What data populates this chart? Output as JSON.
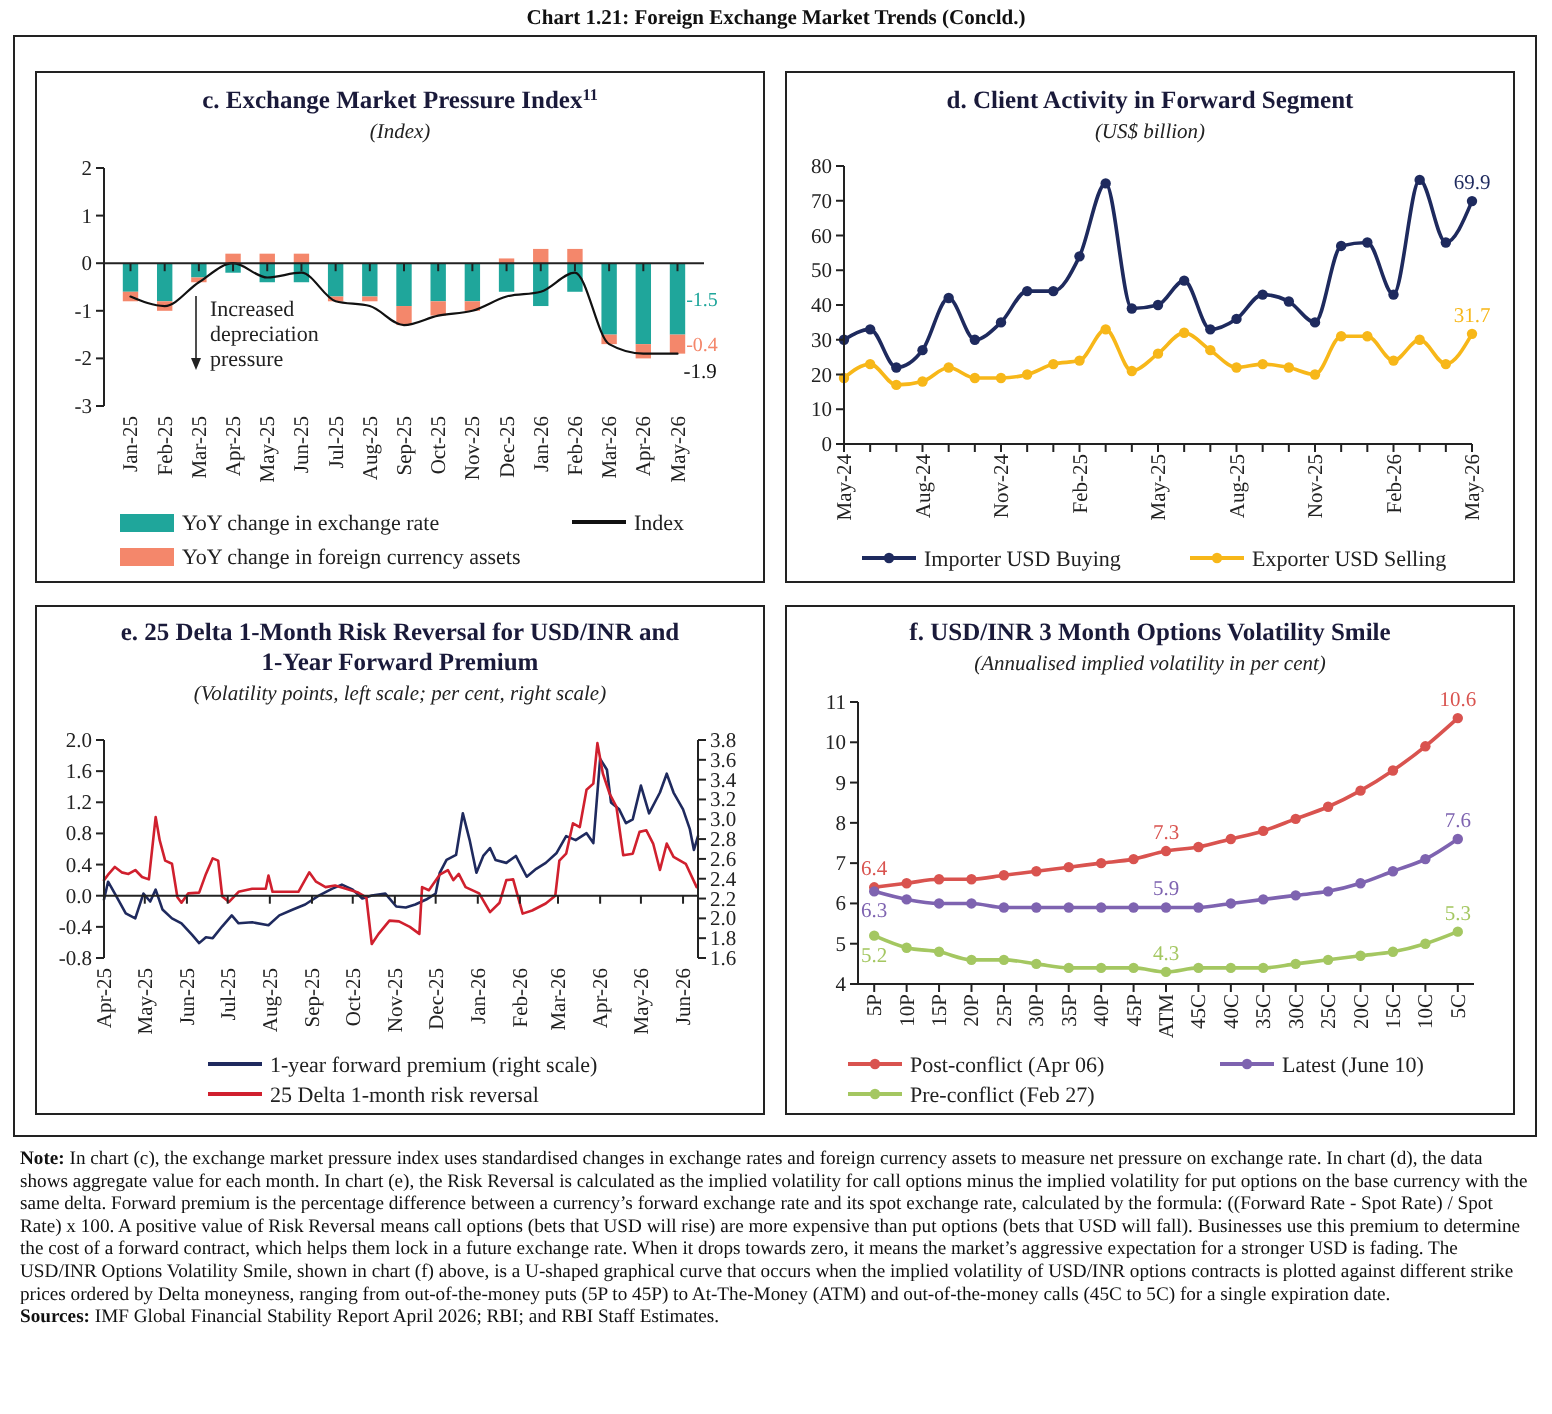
{
  "chart_data": [
    {
      "type": "other",
      "title": "Chart 1.21: Foreign Exchange Market Trends (Concld.)",
      "annotations": [
        "Note: In chart (c), the exchange market pressure index uses standardised changes in exchange rates and foreign currency assets to measure net pressure on exchange rate. In chart (d), the data shows aggregate value for each month. In chart (e), the Risk Reversal is calculated as the implied volatility for call options minus the implied volatility for put options on the base currency with the same delta. Forward premium is the percentage difference between a currency’s forward exchange rate and its spot exchange rate, calculated by the formula: ((Forward Rate - Spot Rate) / Spot Rate) x 100. A positive value of Risk Reversal means call options (bets that USD will rise) are more expensive than put options (bets that USD will fall). Businesses use this premium to determine the cost of a forward contract, which helps them lock in a future exchange rate. When it drops towards zero, it means the market’s aggressive expectation for a stronger USD is fading. The USD/INR Options Volatility Smile, shown in chart (f) above, is a U-shaped graphical curve that occurs when the implied volatility of USD/INR options contracts is plotted against different strike prices ordered by Delta moneyness, ranging from out-of-the-money puts (5P to 45P) to At-The-Money (ATM) and out-of-the-money calls (45C to 5C) for a single expiration date.",
        "Sources: IMF Global Financial Stability Report April 2026; RBI; and RBI Staff Estimates."
      ]
    },
    {
      "type": "bar",
      "title": "c. Exchange Market Pressure Index$^{11}$",
      "subtitle": "(Index)",
      "stacked": true,
      "categories": [
        "Jan-25",
        "Feb-25",
        "Mar-25",
        "Apr-25",
        "May-25",
        "Jun-25",
        "Jul-25",
        "Aug-25",
        "Sep-25",
        "Oct-25",
        "Nov-25",
        "Dec-25",
        "Jan-26",
        "Feb-26",
        "Mar-26",
        "Apr-26",
        "May-26"
      ],
      "series": [
        {
          "name": "YoY change in exchange rate",
          "color": "#1fa69b",
          "values": [
            -0.6,
            -0.8,
            -0.3,
            -0.2,
            -0.4,
            -0.4,
            -0.7,
            -0.7,
            -0.9,
            -0.8,
            -0.8,
            -0.6,
            -0.9,
            -0.6,
            -1.5,
            -1.7,
            -1.5
          ],
          "value_labels": [
            null,
            null,
            null,
            null,
            null,
            null,
            null,
            null,
            null,
            null,
            null,
            null,
            null,
            null,
            null,
            null,
            "-1.5"
          ]
        },
        {
          "name": "YoY change in foreign currency assets",
          "color": "#f4876b",
          "values": [
            -0.2,
            -0.2,
            -0.1,
            0.2,
            0.2,
            0.2,
            -0.1,
            -0.1,
            -0.4,
            -0.3,
            -0.2,
            0.1,
            0.3,
            0.3,
            -0.2,
            -0.3,
            -0.4
          ],
          "value_labels": [
            null,
            null,
            null,
            null,
            null,
            null,
            null,
            null,
            null,
            null,
            null,
            null,
            null,
            null,
            null,
            null,
            "-0.4"
          ]
        },
        {
          "name": "Index",
          "type": "line",
          "color": "#111111",
          "values": [
            -0.7,
            -0.9,
            -0.4,
            0,
            -0.3,
            -0.2,
            -0.8,
            -0.9,
            -1.3,
            -1.1,
            -1.0,
            -0.7,
            -0.6,
            -0.2,
            -1.7,
            -1.9,
            -1.9
          ],
          "value_labels": [
            null,
            null,
            null,
            null,
            null,
            null,
            null,
            null,
            null,
            null,
            null,
            null,
            null,
            null,
            null,
            null,
            "-1.9"
          ]
        }
      ],
      "ylim": [
        -3,
        2
      ],
      "yticks": [
        -3,
        -2,
        -1,
        0,
        1,
        2
      ],
      "legend": "bottom",
      "annotations": [
        "Increased depreciation pressure"
      ]
    },
    {
      "type": "line",
      "title": "d. Client Activity in Forward Segment",
      "subtitle": "(US$ billion)",
      "marker": "circle",
      "categories": [
        "May-24",
        null,
        null,
        "Aug-24",
        null,
        null,
        "Nov-24",
        null,
        null,
        "Feb-25",
        null,
        null,
        "May-25",
        null,
        null,
        "Aug-25",
        null,
        null,
        "Nov-25",
        null,
        null,
        "Feb-26",
        null,
        null,
        "May-26"
      ],
      "series": [
        {
          "name": "Importer USD Buying",
          "color": "#1e2a5e",
          "values": [
            30,
            33,
            22,
            27,
            42,
            30,
            35,
            44,
            44,
            54,
            75,
            39,
            40,
            47,
            33,
            36,
            43,
            41,
            35,
            57,
            58,
            43,
            76,
            58,
            69.9
          ],
          "value_labels": [
            null,
            null,
            null,
            null,
            null,
            null,
            null,
            null,
            null,
            null,
            null,
            null,
            null,
            null,
            null,
            null,
            null,
            null,
            null,
            null,
            null,
            null,
            null,
            null,
            "69.9"
          ]
        },
        {
          "name": "Exporter USD Selling",
          "color": "#f7b719",
          "values": [
            19,
            23,
            17,
            18,
            22,
            19,
            19,
            20,
            23,
            24,
            33,
            21,
            26,
            32,
            27,
            22,
            23,
            22,
            20,
            31,
            31,
            24,
            30,
            23,
            31.7
          ],
          "value_labels": [
            null,
            null,
            null,
            null,
            null,
            null,
            null,
            null,
            null,
            null,
            null,
            null,
            null,
            null,
            null,
            null,
            null,
            null,
            null,
            null,
            null,
            null,
            null,
            null,
            "31.7"
          ]
        }
      ],
      "ylim": [
        0,
        80
      ],
      "yticks": [
        0,
        10,
        20,
        30,
        40,
        50,
        60,
        70,
        80
      ],
      "legend": "bottom"
    },
    {
      "type": "line",
      "title": "e. 25 Delta 1-Month Risk Reversal for USD/INR and 1-Year Forward Premium",
      "subtitle": "(Volatility points, left scale; per cent, right scale)",
      "xlim": [
        "2025-04-01",
        "2026-06-12"
      ],
      "xticks": [
        {
          "value": "2025-04-01",
          "label": "Apr-25"
        },
        {
          "value": "2025-05-01",
          "label": "May-25"
        },
        {
          "value": "2025-06-01",
          "label": "Jun-25"
        },
        {
          "value": "2025-07-01",
          "label": "Jul-25"
        },
        {
          "value": "2025-08-01",
          "label": "Aug-25"
        },
        {
          "value": "2025-09-01",
          "label": "Sep-25"
        },
        {
          "value": "2025-10-01",
          "label": "Oct-25"
        },
        {
          "value": "2025-11-01",
          "label": "Nov-25"
        },
        {
          "value": "2025-12-01",
          "label": "Dec-25"
        },
        {
          "value": "2026-01-01",
          "label": "Jan-26"
        },
        {
          "value": "2026-02-01",
          "label": "Feb-26"
        },
        {
          "value": "2026-03-01",
          "label": "Mar-26"
        },
        {
          "value": "2026-04-01",
          "label": "Apr-26"
        },
        {
          "value": "2026-05-01",
          "label": "May-26"
        },
        {
          "value": "2026-06-01",
          "label": "Jun-26"
        }
      ],
      "series": [
        {
          "name": "1-year forward premium (right scale)",
          "color": "#1f2a5e",
          "axis": "y2",
          "x": [
            "2025-04-01",
            "2025-04-04",
            "2025-04-09",
            "2025-04-17",
            "2025-04-24",
            "2025-04-30",
            "2025-05-05",
            "2025-05-09",
            "2025-05-14",
            "2025-05-21",
            "2025-05-28",
            "2025-06-05",
            "2025-06-10",
            "2025-06-15",
            "2025-06-20",
            "2025-06-27",
            "2025-07-04",
            "2025-07-09",
            "2025-07-19",
            "2025-07-31",
            "2025-08-08",
            "2025-08-18",
            "2025-08-27",
            "2025-09-06",
            "2025-09-16",
            "2025-09-23",
            "2025-10-01",
            "2025-10-08",
            "2025-10-15",
            "2025-10-25",
            "2025-11-02",
            "2025-11-09",
            "2025-11-16",
            "2025-11-24",
            "2025-12-01",
            "2025-12-04",
            "2025-12-09",
            "2025-12-16",
            "2025-12-21",
            "2025-12-26",
            "2025-12-31",
            "2026-01-05",
            "2026-01-10",
            "2026-01-14",
            "2026-01-22",
            "2026-01-29",
            "2026-02-06",
            "2026-02-13",
            "2026-02-20",
            "2026-02-28",
            "2026-03-07",
            "2026-03-14",
            "2026-03-22",
            "2026-03-27",
            "2026-04-01",
            "2026-04-06",
            "2026-04-09",
            "2026-04-15",
            "2026-04-20",
            "2026-04-25",
            "2026-05-01",
            "2026-05-07",
            "2026-05-15",
            "2026-05-20",
            "2026-05-25",
            "2026-06-01",
            "2026-06-06",
            "2026-06-09",
            "2026-06-12"
          ],
          "values": [
            2.19,
            2.37,
            2.25,
            2.05,
            2.0,
            2.25,
            2.17,
            2.29,
            2.09,
            2.0,
            1.95,
            1.83,
            1.75,
            1.81,
            1.8,
            1.92,
            2.03,
            1.95,
            1.96,
            1.93,
            2.03,
            2.09,
            2.14,
            2.23,
            2.3,
            2.34,
            2.29,
            2.2,
            2.23,
            2.25,
            2.12,
            2.11,
            2.14,
            2.19,
            2.25,
            2.46,
            2.59,
            2.64,
            3.06,
            2.79,
            2.46,
            2.63,
            2.71,
            2.59,
            2.56,
            2.63,
            2.42,
            2.5,
            2.56,
            2.66,
            2.83,
            2.79,
            2.86,
            2.76,
            3.61,
            3.5,
            3.17,
            3.1,
            2.96,
            3.0,
            3.34,
            3.06,
            3.27,
            3.46,
            3.27,
            3.1,
            2.9,
            2.69,
            2.83
          ]
        },
        {
          "name": "25 Delta 1-month risk reversal",
          "color": "#d0202e",
          "x": [
            "2025-04-01",
            "2025-04-04",
            "2025-04-09",
            "2025-04-14",
            "2025-04-19",
            "2025-04-24",
            "2025-04-29",
            "2025-05-04",
            "2025-05-09",
            "2025-05-12",
            "2025-05-16",
            "2025-05-21",
            "2025-05-25",
            "2025-05-28",
            "2025-06-02",
            "2025-06-10",
            "2025-06-15",
            "2025-06-20",
            "2025-06-24",
            "2025-06-27",
            "2025-07-02",
            "2025-07-09",
            "2025-07-19",
            "2025-07-29",
            "2025-07-31",
            "2025-08-03",
            "2025-08-13",
            "2025-08-22",
            "2025-08-30",
            "2025-09-04",
            "2025-09-11",
            "2025-09-18",
            "2025-09-26",
            "2025-10-05",
            "2025-10-11",
            "2025-10-15",
            "2025-10-20",
            "2025-10-28",
            "2025-11-04",
            "2025-11-12",
            "2025-11-19",
            "2025-11-21",
            "2025-11-26",
            "2025-12-04",
            "2025-12-10",
            "2025-12-14",
            "2025-12-18",
            "2025-12-23",
            "2026-01-02",
            "2026-01-10",
            "2026-01-17",
            "2026-01-22",
            "2026-01-27",
            "2026-02-03",
            "2026-02-10",
            "2026-02-20",
            "2026-02-27",
            "2026-03-02",
            "2026-03-07",
            "2026-03-12",
            "2026-03-17",
            "2026-03-22",
            "2026-03-27",
            "2026-03-30",
            "2026-04-03",
            "2026-04-08",
            "2026-04-13",
            "2026-04-18",
            "2026-04-25",
            "2026-04-30",
            "2026-05-05",
            "2026-05-10",
            "2026-05-15",
            "2026-05-20",
            "2026-05-25",
            "2026-06-03",
            "2026-06-11"
          ],
          "values": [
            0.2,
            0.27,
            0.37,
            0.3,
            0.28,
            0.33,
            0.24,
            0.21,
            1.01,
            0.71,
            0.45,
            0.41,
            -0.02,
            -0.09,
            0.03,
            0.04,
            0.28,
            0.48,
            0.45,
            -0.01,
            -0.08,
            0.05,
            0.09,
            0.09,
            0.26,
            0.05,
            0.05,
            0.05,
            0.3,
            0.18,
            0.11,
            0.13,
            0.09,
            0.04,
            -0.02,
            -0.62,
            -0.49,
            -0.32,
            -0.33,
            -0.4,
            -0.49,
            0.11,
            0.07,
            0.27,
            0.33,
            0.2,
            0.28,
            0.11,
            0.03,
            -0.21,
            -0.09,
            0.2,
            0.21,
            -0.23,
            -0.19,
            -0.1,
            0,
            0.45,
            0.54,
            0.93,
            0.88,
            1.36,
            1.44,
            1.96,
            1.57,
            1.31,
            1.14,
            0.52,
            0.54,
            0.82,
            0.84,
            0.67,
            0.33,
            0.67,
            0.5,
            0.41,
            0.11
          ]
        }
      ],
      "ylim": [
        -0.8,
        2.0
      ],
      "yticks": [
        {
          "value": -0.8,
          "label": "-0.8"
        },
        {
          "value": -0.4,
          "label": "-0.4"
        },
        {
          "value": 0,
          "label": "0.0"
        },
        {
          "value": 0.4,
          "label": "0.4"
        },
        {
          "value": 0.8,
          "label": "0.8"
        },
        {
          "value": 1.2,
          "label": "1.2"
        },
        {
          "value": 1.6,
          "label": "1.6"
        },
        {
          "value": 2,
          "label": "2.0"
        }
      ],
      "y2lim": [
        1.6,
        3.8
      ],
      "y2ticks": [
        1.6,
        1.8,
        {
          "value": 2,
          "label": "2.0"
        },
        2.2,
        2.4,
        2.6,
        2.8,
        {
          "value": 3,
          "label": "3.0"
        },
        3.2,
        3.4,
        3.6,
        3.8
      ],
      "legend": "bottom"
    },
    {
      "type": "line",
      "title": "f. USD/INR 3 Month Options Volatility Smile",
      "subtitle": "(Annualised implied volatility in per cent)",
      "marker": "circle",
      "categories": [
        "5P",
        "10P",
        "15P",
        "20P",
        "25P",
        "30P",
        "35P",
        "40P",
        "45P",
        "ATM",
        "45C",
        "40C",
        "35C",
        "30C",
        "25C",
        "20C",
        "15C",
        "10C",
        "5C"
      ],
      "series": [
        {
          "name": "Post-conflict (Apr 06)",
          "color": "#d9534f",
          "values": [
            6.4,
            6.5,
            6.6,
            6.6,
            6.7,
            6.8,
            6.9,
            7.0,
            7.1,
            7.3,
            7.4,
            7.6,
            7.8,
            8.1,
            8.4,
            8.8,
            9.3,
            9.9,
            10.6
          ],
          "value_labels": [
            "6.4",
            null,
            null,
            null,
            null,
            null,
            null,
            null,
            null,
            "7.3",
            null,
            null,
            null,
            null,
            null,
            null,
            null,
            null,
            "10.6"
          ]
        },
        {
          "name": "Latest (June 10)",
          "color": "#7e63b0",
          "values": [
            6.3,
            6.1,
            6.0,
            6.0,
            5.9,
            5.9,
            5.9,
            5.9,
            5.9,
            5.9,
            5.9,
            6.0,
            6.1,
            6.2,
            6.3,
            6.5,
            6.8,
            7.1,
            7.6
          ],
          "value_labels": [
            "6.3",
            null,
            null,
            null,
            null,
            null,
            null,
            null,
            null,
            "5.9",
            null,
            null,
            null,
            null,
            null,
            null,
            null,
            null,
            "7.6"
          ]
        },
        {
          "name": "Pre-conflict (Feb 27)",
          "color": "#a4c761",
          "values": [
            5.2,
            4.9,
            4.8,
            4.6,
            4.6,
            4.5,
            4.4,
            4.4,
            4.4,
            4.3,
            4.4,
            4.4,
            4.4,
            4.5,
            4.6,
            4.7,
            4.8,
            5.0,
            5.3
          ],
          "value_labels": [
            "5.2",
            null,
            null,
            null,
            null,
            null,
            null,
            null,
            null,
            "4.3",
            null,
            null,
            null,
            null,
            null,
            null,
            null,
            null,
            "5.3"
          ]
        }
      ],
      "ylim": [
        4,
        11
      ],
      "yticks": [
        4,
        5,
        6,
        7,
        8,
        9,
        10,
        11
      ],
      "legend": "bottom"
    }
  ]
}
